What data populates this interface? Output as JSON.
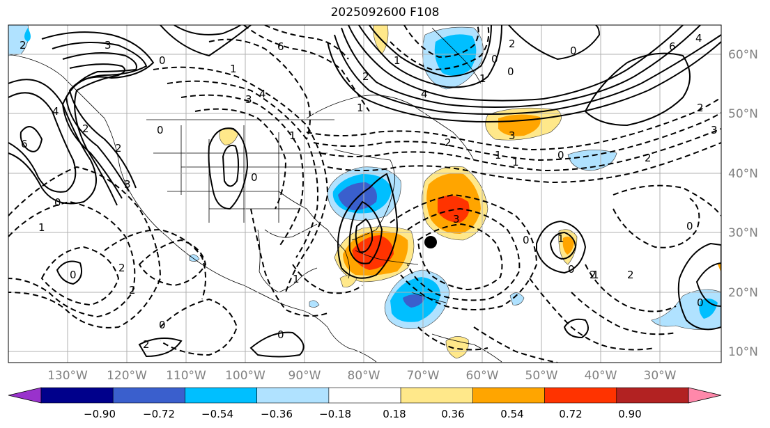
{
  "title": "2025092600 F108",
  "lat_labels": [
    "60°N",
    "50°N",
    "40°N",
    "30°N",
    "20°N",
    "10°N"
  ],
  "lon_labels": [
    "130°W",
    "120°W",
    "110°W",
    "100°W",
    "90°W",
    "80°W",
    "70°W",
    "60°W",
    "50°W",
    "40°W",
    "30°W"
  ],
  "colorbar": {
    "tick_labels": [
      "−0.90",
      "−0.72",
      "−0.54",
      "−0.36",
      "−0.18",
      "0.18",
      "0.36",
      "0.54",
      "0.72",
      "0.90"
    ],
    "colors": [
      "#9932cc",
      "#00008b",
      "#3a5fcd",
      "#00bfff",
      "#b0e2ff",
      "#ffffff",
      "#ffe88a",
      "#ffa500",
      "#ff3300",
      "#b22222",
      "#ff88aa"
    ]
  },
  "contour_labels": [
    "2",
    "3",
    "0",
    "6",
    "4",
    "1",
    "3",
    "2",
    "1",
    "0",
    "1",
    "0",
    "2",
    "0",
    "1",
    "3",
    "2",
    "4",
    "2",
    "6",
    "4",
    "0",
    "2",
    "3",
    "1",
    "0",
    "0",
    "6",
    "4",
    "2",
    "3",
    "1",
    "0",
    "1",
    "2",
    "0",
    "3",
    "2",
    "1",
    "0",
    "0",
    "1",
    "2",
    "0",
    "1",
    "2",
    "0",
    "0",
    "2",
    "1",
    "0",
    "2"
  ]
}
